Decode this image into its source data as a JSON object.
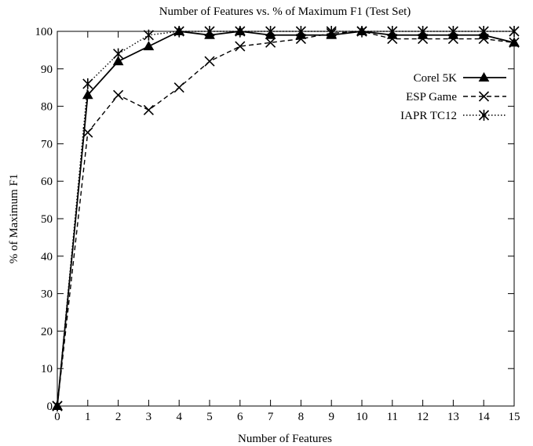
{
  "chart_data": {
    "type": "line",
    "title": "Number of Features vs. % of Maximum F1 (Test Set)",
    "xlabel": "Number of Features",
    "ylabel": "% of Maximum F1",
    "x": [
      0,
      1,
      2,
      3,
      4,
      5,
      6,
      7,
      8,
      9,
      10,
      11,
      12,
      13,
      14,
      15
    ],
    "xlim": [
      0,
      15
    ],
    "ylim": [
      0,
      100
    ],
    "x_ticks": [
      0,
      1,
      2,
      3,
      4,
      5,
      6,
      7,
      8,
      9,
      10,
      11,
      12,
      13,
      14,
      15
    ],
    "y_ticks": [
      0,
      10,
      20,
      30,
      40,
      50,
      60,
      70,
      80,
      90,
      100
    ],
    "grid": false,
    "legend_position": "top-right",
    "series": [
      {
        "name": "Corel 5K",
        "marker": "triangle",
        "line_style": "solid",
        "color": "#000000",
        "values": [
          0,
          83,
          92,
          96,
          100,
          99,
          100,
          99,
          99,
          99,
          100,
          99,
          99,
          99,
          99,
          97
        ]
      },
      {
        "name": "ESP Game",
        "marker": "x",
        "line_style": "dashed",
        "color": "#000000",
        "values": [
          0,
          73,
          83,
          79,
          85,
          92,
          96,
          97,
          98,
          99.5,
          100,
          98,
          98,
          98,
          98,
          97
        ]
      },
      {
        "name": "IAPR TC12",
        "marker": "asterisk",
        "line_style": "dotted",
        "color": "#000000",
        "values": [
          0,
          86,
          94,
          99,
          100,
          100,
          100,
          100,
          100,
          100,
          100,
          100,
          100,
          100,
          100,
          100
        ]
      }
    ]
  }
}
